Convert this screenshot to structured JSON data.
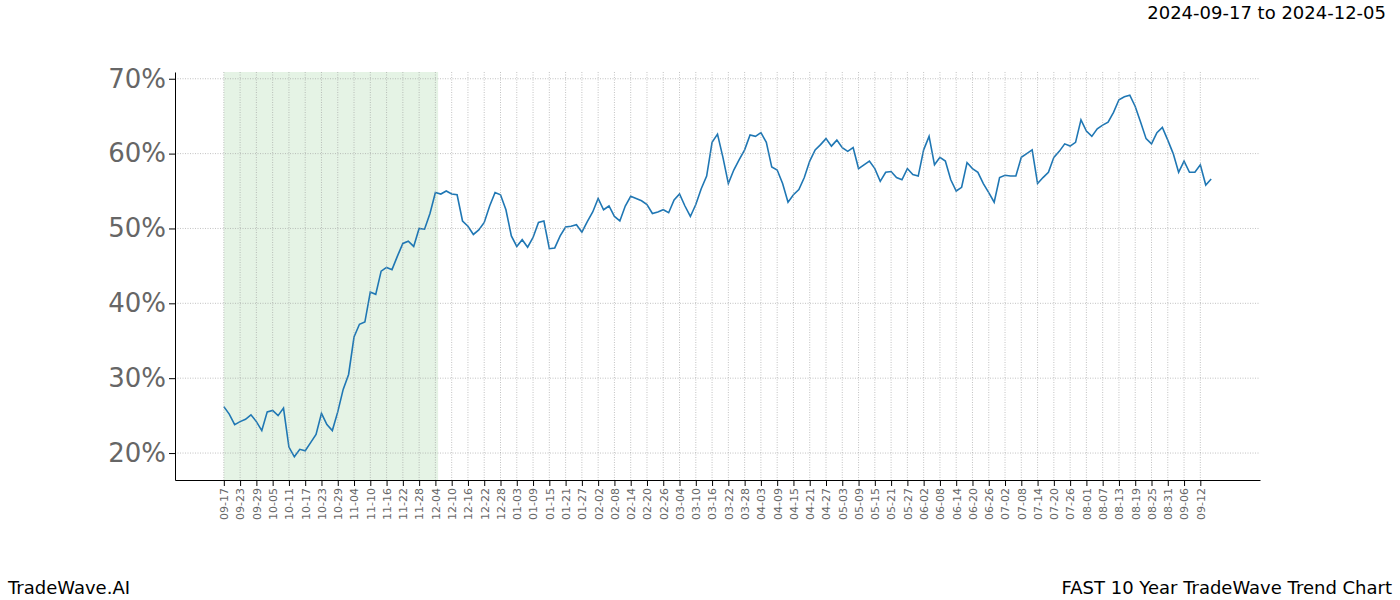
{
  "chart_data": {
    "type": "line",
    "subtitle": "2024-09-17 to 2024-12-05",
    "annotations": [
      "TradeWave.AI",
      "FAST 10 Year TradeWave Trend Chart"
    ],
    "color": "#1f77b4",
    "grid": true,
    "highlight": [
      0,
      39.5
    ],
    "xlim": [
      -9,
      191
    ],
    "ylim": [
      16.4,
      70.9
    ],
    "yticks": [
      {
        "value": 20,
        "label": "20%"
      },
      {
        "value": 30,
        "label": "30%"
      },
      {
        "value": 40,
        "label": "40%"
      },
      {
        "value": 50,
        "label": "50%"
      },
      {
        "value": 60,
        "label": "60%"
      },
      {
        "value": 70,
        "label": "70%"
      }
    ],
    "categories": [
      "09-17",
      null,
      null,
      "09-23",
      null,
      null,
      "09-29",
      null,
      null,
      "10-05",
      null,
      null,
      "10-11",
      null,
      null,
      "10-17",
      null,
      null,
      "10-23",
      null,
      null,
      "10-29",
      null,
      null,
      "11-04",
      null,
      null,
      "11-10",
      null,
      null,
      "11-16",
      null,
      null,
      "11-22",
      null,
      null,
      "11-28",
      null,
      null,
      "12-04",
      null,
      null,
      "12-10",
      null,
      null,
      "12-16",
      null,
      null,
      "12-22",
      null,
      null,
      "12-28",
      null,
      null,
      "01-03",
      null,
      null,
      "01-09",
      null,
      null,
      "01-15",
      null,
      null,
      "01-21",
      null,
      null,
      "01-27",
      null,
      null,
      "02-02",
      null,
      null,
      "02-08",
      null,
      null,
      "02-14",
      null,
      null,
      "02-20",
      null,
      null,
      "02-26",
      null,
      null,
      "03-04",
      null,
      null,
      "03-10",
      null,
      null,
      "03-16",
      null,
      null,
      "03-22",
      null,
      null,
      "03-28",
      null,
      null,
      "04-03",
      null,
      null,
      "04-09",
      null,
      null,
      "04-15",
      null,
      null,
      "04-21",
      null,
      null,
      "04-27",
      null,
      null,
      "05-03",
      null,
      null,
      "05-09",
      null,
      null,
      "05-15",
      null,
      null,
      "05-21",
      null,
      null,
      "05-27",
      null,
      null,
      "06-02",
      null,
      null,
      "06-08",
      null,
      null,
      "06-14",
      null,
      null,
      "06-20",
      null,
      null,
      "06-26",
      null,
      null,
      "07-02",
      null,
      null,
      "07-08",
      null,
      null,
      "07-14",
      null,
      null,
      "07-20",
      null,
      null,
      "07-26",
      null,
      null,
      "08-01",
      null,
      null,
      "08-07",
      null,
      null,
      "08-13",
      null,
      null,
      "08-19",
      null,
      null,
      "08-25",
      null,
      null,
      "08-31",
      null,
      null,
      "09-06",
      null,
      null,
      "09-12",
      null,
      null
    ],
    "values": [
      26.2,
      25.2,
      23.8,
      24.2,
      24.5,
      25.1,
      24.2,
      23.0,
      25.5,
      25.7,
      25.0,
      26.0,
      20.8,
      19.5,
      20.5,
      20.3,
      21.4,
      22.5,
      25.3,
      23.8,
      23.0,
      25.5,
      28.5,
      30.5,
      35.5,
      37.2,
      37.5,
      41.5,
      41.2,
      44.3,
      44.8,
      44.5,
      46.3,
      48.0,
      48.3,
      47.6,
      50.0,
      49.9,
      52.0,
      54.8,
      54.6,
      55.0,
      54.6,
      54.5,
      51.0,
      50.3,
      49.2,
      49.8,
      50.8,
      53.0,
      54.8,
      54.5,
      52.5,
      49.0,
      47.6,
      48.5,
      47.5,
      48.8,
      50.8,
      51.0,
      47.3,
      47.4,
      49.0,
      50.2,
      50.3,
      50.5,
      49.5,
      50.9,
      52.2,
      54.0,
      52.5,
      53.0,
      51.6,
      51.0,
      53.0,
      54.3,
      54.0,
      53.7,
      53.2,
      52.0,
      52.2,
      52.5,
      52.1,
      53.8,
      54.6,
      53.0,
      51.6,
      53.2,
      55.3,
      57.0,
      61.5,
      62.6,
      59.5,
      56.0,
      57.8,
      59.2,
      60.5,
      62.5,
      62.3,
      62.8,
      61.5,
      58.2,
      57.8,
      56.0,
      53.5,
      54.5,
      55.2,
      56.8,
      59.0,
      60.5,
      61.2,
      62.0,
      61.0,
      61.8,
      60.8,
      60.3,
      60.8,
      58.0,
      58.5,
      59.0,
      58.0,
      56.3,
      57.5,
      57.6,
      56.8,
      56.5,
      58.0,
      57.2,
      57.0,
      60.5,
      62.3,
      58.5,
      59.5,
      59.0,
      56.5,
      55.0,
      55.5,
      58.8,
      58.0,
      57.5,
      56.0,
      54.8,
      53.5,
      56.8,
      57.1,
      57.0,
      57.0,
      59.5,
      60.0,
      60.5,
      56.0,
      56.8,
      57.5,
      59.5,
      60.3,
      61.3,
      61.0,
      61.5,
      64.5,
      63.0,
      62.3,
      63.3,
      63.8,
      64.2,
      65.5,
      67.2,
      67.6,
      67.8,
      66.3,
      64.2,
      62.0,
      61.3,
      62.8,
      63.5,
      61.8,
      60.0,
      57.5,
      59.0,
      57.5,
      57.5,
      58.5,
      55.8,
      56.6
    ]
  }
}
